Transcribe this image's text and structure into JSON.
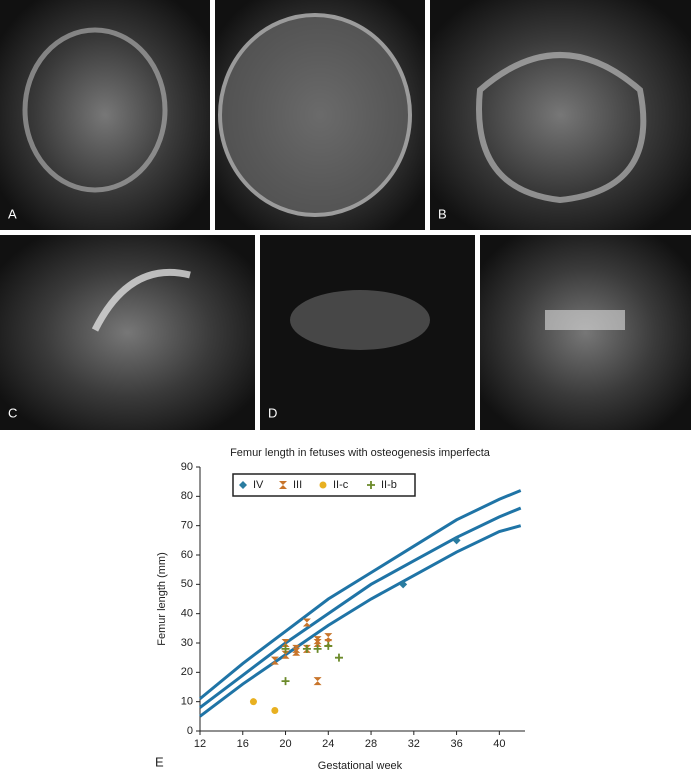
{
  "figure": {
    "panels": [
      "A",
      "B",
      "C",
      "D",
      "E"
    ]
  },
  "chart_data": {
    "type": "scatter",
    "title": "Femur length in fetuses with osteogenesis imperfecta",
    "x_label": "Gestational week",
    "y_label": "Femur length (mm)",
    "xlim": [
      12,
      42.4
    ],
    "ylim": [
      0,
      90
    ],
    "xticks": [
      12,
      16,
      20,
      24,
      28,
      32,
      36,
      40
    ],
    "yticks": [
      0,
      10,
      20,
      30,
      40,
      50,
      60,
      70,
      80,
      90
    ],
    "legend": "top-left",
    "reference_curves": [
      {
        "color": "#1f74a6",
        "x": [
          12,
          16,
          20,
          24,
          28,
          32,
          36,
          40,
          42
        ],
        "values": [
          11,
          23,
          34,
          45,
          54,
          63,
          72,
          79,
          82
        ]
      },
      {
        "color": "#1f74a6",
        "x": [
          12,
          16,
          20,
          24,
          28,
          32,
          36,
          40,
          42
        ],
        "values": [
          8,
          19,
          30,
          40,
          50,
          58,
          66,
          73,
          76
        ]
      },
      {
        "color": "#1f74a6",
        "x": [
          12,
          16,
          20,
          24,
          28,
          32,
          36,
          40,
          42
        ],
        "values": [
          5,
          16,
          26,
          36,
          45,
          53,
          61,
          68,
          70
        ]
      }
    ],
    "series": [
      {
        "name": "IV",
        "color": "#2a7ca0",
        "marker": "diamond",
        "x": [
          31,
          36
        ],
        "values": [
          50,
          65
        ]
      },
      {
        "name": "III",
        "color": "#c8742a",
        "marker": "bowtie",
        "x": [
          19,
          20,
          20,
          21,
          21,
          22,
          22,
          23,
          23,
          23,
          24,
          24
        ],
        "values": [
          24,
          30,
          26,
          28,
          27,
          37,
          28,
          31,
          30,
          17,
          32,
          30
        ]
      },
      {
        "name": "II-c",
        "color": "#e8b020",
        "marker": "circle",
        "x": [
          17,
          19
        ],
        "values": [
          10,
          7
        ]
      },
      {
        "name": "II-b",
        "color": "#6b8a2a",
        "marker": "plus",
        "x": [
          20,
          20,
          22,
          23,
          24,
          25
        ],
        "values": [
          17,
          28,
          28,
          28,
          29,
          25
        ]
      }
    ]
  }
}
